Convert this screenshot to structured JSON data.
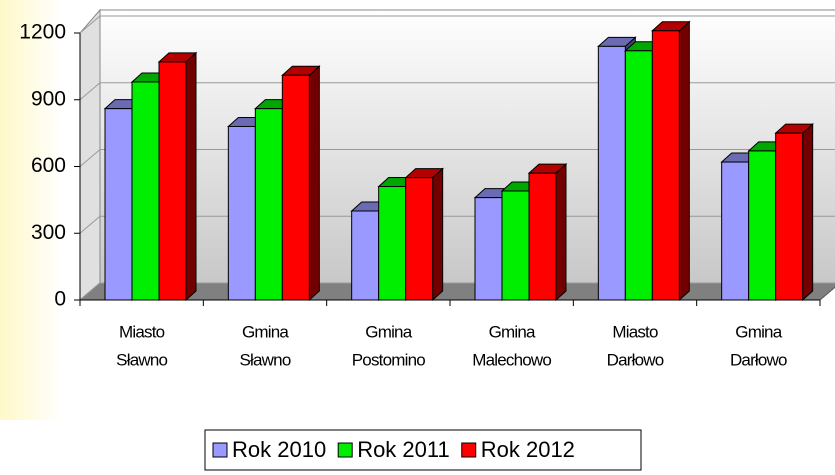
{
  "chart_data": {
    "type": "bar3d",
    "categories": [
      [
        "Miasto",
        "Sławno"
      ],
      [
        "Gmina",
        "Sławno"
      ],
      [
        "Gmina",
        "Postomino"
      ],
      [
        "Gmina",
        "Malechowo"
      ],
      [
        "Miasto",
        "Darłowo"
      ],
      [
        "Gmina",
        "Darłowo"
      ]
    ],
    "series": [
      {
        "name": "Rok 2010",
        "color": "#9999ff",
        "values": [
          860,
          780,
          400,
          460,
          1140,
          620
        ]
      },
      {
        "name": "Rok 2011",
        "color": "#00ee00",
        "values": [
          980,
          860,
          510,
          490,
          1120,
          670
        ]
      },
      {
        "name": "Rok 2012",
        "color": "#ff0000",
        "values": [
          1070,
          1010,
          550,
          570,
          1210,
          750
        ]
      }
    ],
    "ylim": [
      0,
      1200
    ],
    "yticks": [
      0,
      300,
      600,
      900,
      1200
    ],
    "grid": true,
    "legend": "bottom"
  }
}
